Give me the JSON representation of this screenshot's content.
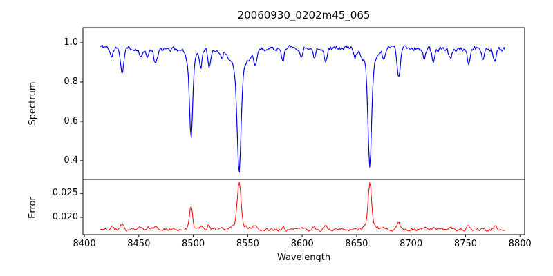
{
  "figure": {
    "background": "#ffffff",
    "frame_color": "#000000"
  },
  "chart_data": {
    "type": "line",
    "title": "20060930_0202m45_065",
    "xlabel": "Wavelength",
    "grid": false,
    "legend": "none",
    "xlim": [
      8398.7,
      8804.3
    ],
    "xticks": [
      8400,
      8450,
      8500,
      8550,
      8600,
      8650,
      8700,
      8750,
      8800
    ],
    "xtick_labels": [
      "8400",
      "8450",
      "8500",
      "8550",
      "8600",
      "8650",
      "8700",
      "8750",
      "8800"
    ],
    "panels": [
      {
        "name": "spectrum",
        "ylabel": "Spectrum",
        "color": "#0000f0",
        "line_width": 1.2,
        "ylim": [
          0.305,
          1.077
        ],
        "yticks": [
          0.4,
          0.6,
          0.8,
          1.0
        ],
        "ytick_labels": [
          "0.4",
          "0.6",
          "0.8",
          "1.0"
        ],
        "description": "Normalized stellar spectrum, continuum near 0.97 with Ca II triplet absorption lines"
      },
      {
        "name": "error",
        "ylabel": "Error",
        "color": "#ff0000",
        "line_width": 1.0,
        "ylim": [
          0.0164,
          0.0279
        ],
        "yticks": [
          0.02,
          0.025
        ],
        "ytick_labels": [
          "0.020",
          "0.025"
        ],
        "description": "Error spectrum, baseline near 0.0174 with peaks at the strong absorption lines"
      }
    ],
    "key_values": {
      "data_wavelength_range": [
        8414.5,
        8787
      ],
      "spectrum_continuum": 0.972,
      "spectrum_min_at_8498": 0.51,
      "spectrum_min_at_8542": 0.34,
      "spectrum_min_at_8662": 0.375,
      "spectrum_min_at_8688": 0.82,
      "error_baseline": 0.0174,
      "error_peak_at_8498": 0.0224,
      "error_peak_at_8542": 0.0275,
      "error_peak_at_8662": 0.0273
    },
    "absorption_lines": [
      {
        "center": 8425.0,
        "depth": 0.05,
        "sigma": 1.4,
        "err_amp": 0.0006
      },
      {
        "center": 8434.5,
        "depth": 0.13,
        "sigma": 1.5,
        "err_amp": 0.0012
      },
      {
        "center": 8451.5,
        "depth": 0.04,
        "sigma": 1.2,
        "err_amp": 0.0004
      },
      {
        "center": 8458.0,
        "depth": 0.045,
        "sigma": 1.2,
        "err_amp": 0.0004
      },
      {
        "center": 8465.5,
        "depth": 0.08,
        "sigma": 1.5,
        "err_amp": 0.0007
      },
      {
        "center": 8498.0,
        "depth": 0.38,
        "sigma": 1.3,
        "wing_depth": 0.085,
        "wing_sigma": 4.0,
        "err_amp": 0.0045
      },
      {
        "center": 8507.0,
        "depth": 0.08,
        "sigma": 1.2,
        "err_amp": 0.0006
      },
      {
        "center": 8514.5,
        "depth": 0.1,
        "sigma": 1.3,
        "err_amp": 0.0009
      },
      {
        "center": 8526.0,
        "depth": 0.045,
        "sigma": 1.2,
        "err_amp": 0.0004
      },
      {
        "center": 8542.1,
        "depth": 0.52,
        "sigma": 1.7,
        "wing_depth": 0.115,
        "wing_sigma": 6.5,
        "err_amp": 0.009
      },
      {
        "center": 8556.8,
        "depth": 0.075,
        "sigma": 1.3,
        "err_amp": 0.0006
      },
      {
        "center": 8582.3,
        "depth": 0.06,
        "sigma": 1.2,
        "err_amp": 0.0006
      },
      {
        "center": 8598.8,
        "depth": 0.055,
        "sigma": 1.2,
        "err_amp": 0.0005
      },
      {
        "center": 8611.0,
        "depth": 0.05,
        "sigma": 1.2,
        "err_amp": 0.0005
      },
      {
        "center": 8621.5,
        "depth": 0.07,
        "sigma": 1.3,
        "err_amp": 0.0006
      },
      {
        "center": 8648.5,
        "depth": 0.05,
        "sigma": 1.2,
        "err_amp": 0.0005
      },
      {
        "center": 8662.1,
        "depth": 0.5,
        "sigma": 1.6,
        "wing_depth": 0.1,
        "wing_sigma": 5.5,
        "err_amp": 0.0088
      },
      {
        "center": 8674.8,
        "depth": 0.06,
        "sigma": 1.2,
        "err_amp": 0.0006
      },
      {
        "center": 8688.6,
        "depth": 0.155,
        "sigma": 1.4,
        "err_amp": 0.0013
      },
      {
        "center": 8712.0,
        "depth": 0.05,
        "sigma": 1.2,
        "err_amp": 0.0005
      },
      {
        "center": 8720.5,
        "depth": 0.06,
        "sigma": 1.2,
        "err_amp": 0.0005
      },
      {
        "center": 8736.0,
        "depth": 0.05,
        "sigma": 1.2,
        "err_amp": 0.0005
      },
      {
        "center": 8753.0,
        "depth": 0.08,
        "sigma": 1.4,
        "err_amp": 0.0007
      },
      {
        "center": 8766.0,
        "depth": 0.05,
        "sigma": 1.2,
        "err_amp": 0.0005
      },
      {
        "center": 8777.0,
        "depth": 0.07,
        "sigma": 1.3,
        "err_amp": 0.0006
      }
    ],
    "synthesis": {
      "x_start": 8414.5,
      "x_end": 8787,
      "step": 0.9,
      "continuum": 0.972,
      "wiggle": [
        {
          "amp": 0.006,
          "period": 260,
          "phase": 2.0
        },
        {
          "amp": 0.004,
          "period": 90,
          "phase": 0.7
        }
      ],
      "spectrum_noise": 0.011,
      "error_baseline": 0.01745,
      "error_noise": 0.00028,
      "seed": 11
    }
  }
}
